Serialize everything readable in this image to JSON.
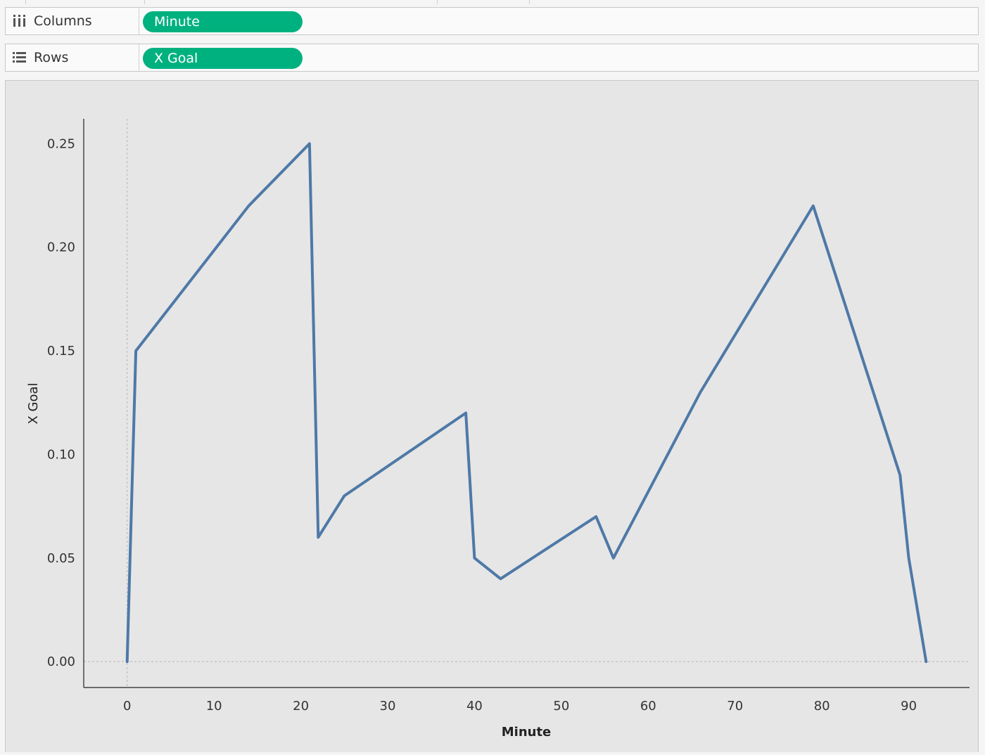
{
  "shelves": {
    "columns": {
      "label": "Columns",
      "pill": "Minute"
    },
    "rows": {
      "label": "Rows",
      "pill": "X Goal"
    }
  },
  "colors": {
    "pill": "#00b180",
    "line": "#4e79a7",
    "pane": "#e6e6e6"
  },
  "icons": {
    "columns": "columns-icon",
    "rows": "rows-icon"
  },
  "chart_data": {
    "type": "line",
    "xlabel": "Minute",
    "ylabel": "X Goal",
    "xlim": [
      -5,
      97
    ],
    "ylim": [
      -0.0125,
      0.262
    ],
    "x_ticks": [
      "0",
      "10",
      "20",
      "30",
      "40",
      "50",
      "60",
      "70",
      "80",
      "90"
    ],
    "y_ticks": [
      "0.00",
      "0.05",
      "0.10",
      "0.15",
      "0.20",
      "0.25"
    ],
    "reference_lines": {
      "x": 0,
      "y": 0
    },
    "grid": false,
    "series": [
      {
        "x": [
          0,
          1,
          14,
          21,
          22,
          25,
          39,
          40,
          43,
          54,
          56,
          66,
          79,
          89,
          90,
          92
        ],
        "y": [
          0.0,
          0.15,
          0.22,
          0.25,
          0.06,
          0.08,
          0.12,
          0.05,
          0.04,
          0.07,
          0.05,
          0.13,
          0.22,
          0.09,
          0.05,
          0.0
        ]
      }
    ]
  }
}
